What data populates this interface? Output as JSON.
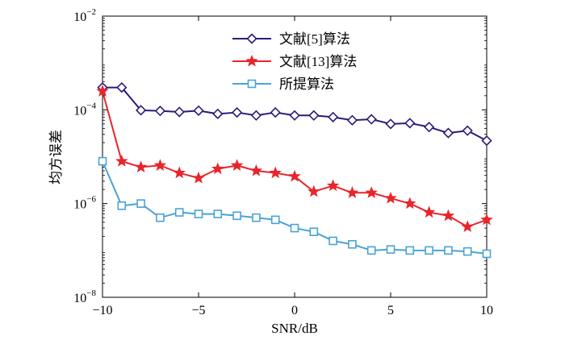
{
  "chart_data": {
    "type": "line",
    "title": "",
    "xlabel": "SNR/dB",
    "ylabel": "均方误差",
    "xlim": [
      -10,
      10
    ],
    "ylim_log10": [
      -8,
      -2
    ],
    "yscale": "log",
    "x_ticks": [
      -10,
      -5,
      0,
      5,
      10
    ],
    "x_tick_labels": [
      "−10",
      "−5",
      "0",
      "5",
      "10"
    ],
    "y_ticks": [
      {
        "base": "10",
        "exp": "−8",
        "log10": -8
      },
      {
        "base": "10",
        "exp": "−6",
        "log10": -6
      },
      {
        "base": "10",
        "exp": "−4",
        "log10": -4
      },
      {
        "base": "10",
        "exp": "−2",
        "log10": -2
      }
    ],
    "grid": false,
    "legend_position": "top-center",
    "x": [
      -10,
      -9,
      -8,
      -7,
      -6,
      -5,
      -4,
      -3,
      -2,
      -1,
      0,
      1,
      2,
      3,
      4,
      5,
      6,
      7,
      8,
      9,
      10
    ],
    "series": [
      {
        "name": "文献[5]算法",
        "color": "#2e1a7a",
        "marker": "diamond",
        "values": [
          0.0003,
          0.0003,
          9.8e-05,
          9.5e-05,
          9e-05,
          9.6e-05,
          8.2e-05,
          8.8e-05,
          7.6e-05,
          8.8e-05,
          7.6e-05,
          7.6e-05,
          7e-05,
          6e-05,
          6.3e-05,
          5e-05,
          5.2e-05,
          4.3e-05,
          3.2e-05,
          3.6e-05,
          2.2e-05
        ]
      },
      {
        "name": "文献[13]算法",
        "color": "#e8252b",
        "marker": "star",
        "values": [
          0.00025,
          8e-06,
          6e-06,
          6.5e-06,
          4.5e-06,
          3.5e-06,
          5.5e-06,
          6.5e-06,
          5e-06,
          4.5e-06,
          3.8e-06,
          1.8e-06,
          2.4e-06,
          1.7e-06,
          1.7e-06,
          1.3e-06,
          1e-06,
          6.5e-07,
          5.5e-07,
          3.2e-07,
          4.5e-07
        ]
      },
      {
        "name": "所提算法",
        "color": "#4aa3d6",
        "marker": "square",
        "values": [
          8e-06,
          9e-07,
          1e-06,
          5e-07,
          6.5e-07,
          6e-07,
          6e-07,
          5.5e-07,
          5e-07,
          4.5e-07,
          3e-07,
          2.5e-07,
          1.6e-07,
          1.35e-07,
          1e-07,
          1.05e-07,
          1e-07,
          1e-07,
          1e-07,
          9.5e-08,
          8.5e-08
        ]
      }
    ]
  }
}
